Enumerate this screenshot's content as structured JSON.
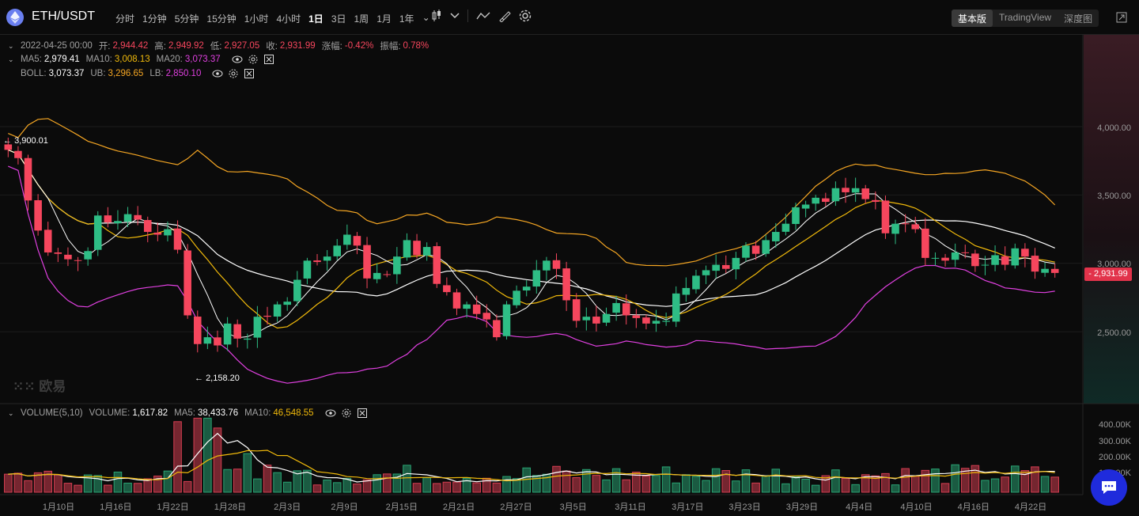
{
  "header": {
    "pair": "ETH/USDT",
    "intervals": [
      "分时",
      "1分钟",
      "5分钟",
      "15分钟",
      "1小时",
      "4小时",
      "1日",
      "3日",
      "1周",
      "1月",
      "1年"
    ],
    "active_interval": "1日",
    "views": [
      "基本版",
      "TradingView",
      "深度图"
    ],
    "active_view": "基本版"
  },
  "ohlc": {
    "date": "2022-04-25 00:00",
    "open_label": "开:",
    "open": "2,944.42",
    "high_label": "高:",
    "high": "2,949.92",
    "low_label": "低:",
    "low": "2,927.05",
    "close_label": "收:",
    "close": "2,931.99",
    "change_label": "涨幅:",
    "change": "-0.42%",
    "amplitude_label": "振幅:",
    "amplitude": "0.78%"
  },
  "ma": {
    "ma5_label": "MA5:",
    "ma5": "2,979.41",
    "ma10_label": "MA10:",
    "ma10": "3,008.13",
    "ma20_label": "MA20:",
    "ma20": "3,073.37"
  },
  "boll": {
    "label": "BOLL:",
    "mid": "3,073.37",
    "ub_label": "UB:",
    "ub": "3,296.65",
    "lb_label": "LB:",
    "lb": "2,850.10"
  },
  "price_axis": [
    "4,000.00",
    "3,500.00",
    "3,000.00",
    "2,500.00"
  ],
  "current_price": "- 2,931.99",
  "high_marker": "3,900.01",
  "low_marker": "2,158.20",
  "watermark": "欧易",
  "volume": {
    "title": "VOLUME(5,10)",
    "vol_label": "VOLUME:",
    "vol": "1,617.82",
    "ma5_label": "MA5:",
    "ma5": "38,433.76",
    "ma10_label": "MA10:",
    "ma10": "46,548.55",
    "axis": [
      "400.00K",
      "300.00K",
      "200.00K",
      "100.00K"
    ]
  },
  "dates": [
    "1月10日",
    "1月16日",
    "1月22日",
    "1月28日",
    "2月3日",
    "2月9日",
    "2月15日",
    "2月21日",
    "2月27日",
    "3月5日",
    "3月11日",
    "3月17日",
    "3月23日",
    "3月29日",
    "4月4日",
    "4月10日",
    "4月16日",
    "4月22日"
  ],
  "colors": {
    "up": "#2ebd85",
    "down": "#f6465d",
    "ma5": "#ffffff",
    "ma10": "#f0b90b",
    "ub": "#f5a623",
    "lb": "#e040e0"
  },
  "chart_data": {
    "type": "candlestick",
    "close": [
      3830,
      3770,
      3460,
      3240,
      3080,
      3070,
      3030,
      3020,
      3090,
      3350,
      3300,
      3310,
      3360,
      3320,
      3230,
      3210,
      3250,
      3100,
      2620,
      2410,
      2460,
      2400,
      2560,
      2450,
      2450,
      2610,
      2610,
      2700,
      2720,
      2880,
      3020,
      3010,
      3050,
      3130,
      3210,
      3130,
      2890,
      2930,
      2920,
      3050,
      3170,
      3060,
      3120,
      2850,
      2790,
      2670,
      2700,
      2630,
      2590,
      2460,
      2700,
      2800,
      2830,
      2950,
      3020,
      2960,
      2730,
      2580,
      2610,
      2560,
      2630,
      2710,
      2620,
      2600,
      2560,
      2580,
      2580,
      2780,
      2820,
      2910,
      2950,
      2990,
      2960,
      3040,
      3130,
      3070,
      3170,
      3230,
      3290,
      3410,
      3430,
      3480,
      3450,
      3550,
      3520,
      3550,
      3470,
      3450,
      3220,
      3290,
      3290,
      3250,
      3040,
      3040,
      3020,
      3080,
      3080,
      2980,
      2990,
      3060,
      2990,
      3110,
      3050,
      2940,
      2960,
      2930
    ]
  }
}
